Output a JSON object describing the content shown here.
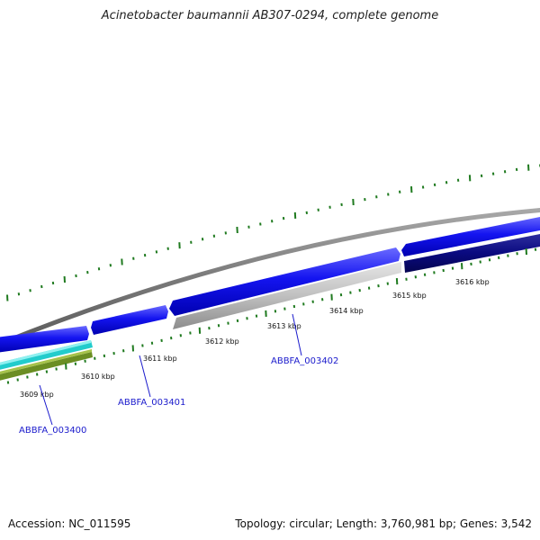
{
  "title": "Acinetobacter baumannii AB307-0294, complete genome",
  "footer": {
    "accession": "Accession: NC_011595",
    "summary": "Topology: circular; Length: 3,760,981 bp; Genes: 3,542"
  },
  "ticks": [
    "3609 kbp",
    "3610 kbp",
    "3611 kbp",
    "3612 kbp",
    "3613 kbp",
    "3614 kbp",
    "3615 kbp",
    "3616 kbp"
  ],
  "gene_labels": [
    "ABBFA_003400",
    "ABBFA_003401",
    "ABBFA_003402"
  ],
  "colors": {
    "backbone": "#808080",
    "forward_cds": "#1414f0",
    "forward_cds_dark": "#0a0a88",
    "reverse_cds": "#b8b8b8",
    "cyan_track": "#22cccc",
    "olive_track": "#6b8e23",
    "tick_green": "#1f7a1f",
    "label_blue": "#1a1acc"
  }
}
